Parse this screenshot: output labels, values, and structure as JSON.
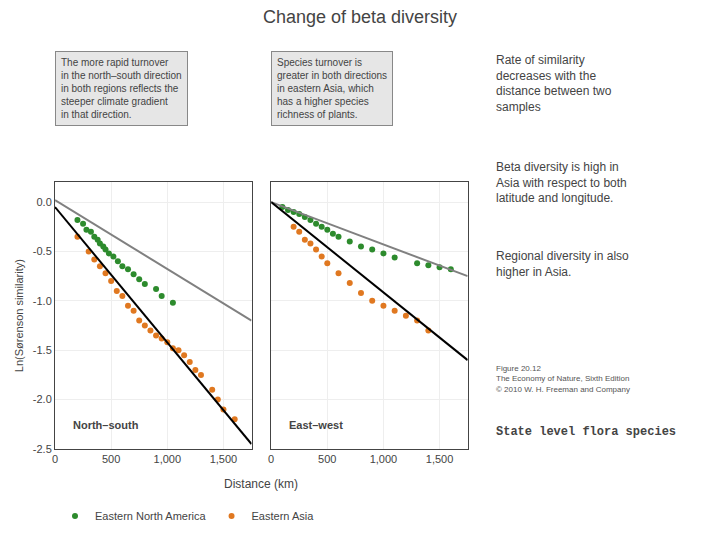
{
  "chart_data": [
    {
      "type": "scatter",
      "title": "Change of beta diversity",
      "subtitle": "North–south",
      "xlabel": "Distance (km)",
      "ylabel": "Ln(Sørenson similarity)",
      "xlim": [
        0,
        1750
      ],
      "ylim": [
        -2.5,
        0.2
      ],
      "xticks": [
        0,
        500,
        {
          "value": 1000,
          "label": "1,000"
        },
        {
          "value": 1500,
          "label": "1,500"
        }
      ],
      "yticks": [
        {
          "value": 0.0,
          "label": "0.0"
        },
        -0.5,
        {
          "value": -1.0,
          "label": "-1.0"
        },
        -1.5,
        {
          "value": -2.0,
          "label": "-2.0"
        },
        -2.5
      ],
      "grid": true,
      "legend": "bottom",
      "series": [
        {
          "name": "Eastern North America",
          "color": "#2d8b2d",
          "x": [
            200,
            250,
            280,
            320,
            350,
            380,
            400,
            430,
            450,
            480,
            520,
            560,
            600,
            650,
            700,
            750,
            800,
            900,
            950,
            1050
          ],
          "values": [
            -0.18,
            -0.22,
            -0.28,
            -0.3,
            -0.35,
            -0.38,
            -0.42,
            -0.45,
            -0.48,
            -0.52,
            -0.55,
            -0.6,
            -0.65,
            -0.68,
            -0.73,
            -0.78,
            -0.83,
            -0.88,
            -0.95,
            -1.02
          ]
        },
        {
          "name": "Eastern Asia",
          "color": "#e07820",
          "x": [
            200,
            300,
            350,
            400,
            450,
            500,
            550,
            600,
            650,
            700,
            750,
            800,
            850,
            900,
            950,
            1000,
            1050,
            1100,
            1150,
            1200,
            1250,
            1300,
            1400,
            1450,
            1500,
            1600
          ],
          "values": [
            -0.35,
            -0.5,
            -0.58,
            -0.65,
            -0.72,
            -0.8,
            -0.9,
            -0.95,
            -1.05,
            -1.1,
            -1.2,
            -1.25,
            -1.3,
            -1.35,
            -1.38,
            -1.42,
            -1.48,
            -1.5,
            -1.55,
            -1.62,
            -1.7,
            -1.75,
            -1.9,
            -2.0,
            -2.1,
            -2.2
          ]
        },
        {
          "type": "line",
          "color": "gray",
          "x": [
            0,
            1750
          ],
          "values": [
            0.02,
            -1.2
          ]
        },
        {
          "type": "line",
          "color": "black",
          "x": [
            0,
            1750
          ],
          "values": [
            -0.05,
            -2.45
          ]
        }
      ],
      "annotations": [
        "The more rapid turnover\nin the north–south direction\nin both regions reflects the\nsteeper climate gradient\nin that direction.",
        "Species turnover is\ngreater in both directions\nin eastern Asia, which\nhas a higher species\nrichness of plants.",
        "Rate of similarity\ndecreases with the\ndistance between two\nsamples",
        "Beta diversity is high in\nAsia with respect to both\nlatitude and longitude.",
        "Regional diversity in also\nhigher in Asia.",
        "Figure 20.12\nThe Economy of Nature, Sixth Edition\n© 2010 W. H. Freeman and Company",
        "State level flora species"
      ]
    },
    {
      "type": "scatter",
      "subtitle": "East–west",
      "xlim": [
        0,
        1750
      ],
      "ylim": [
        -2.5,
        0.2
      ],
      "xticks": [
        0,
        500,
        {
          "value": 1000,
          "label": "1,000"
        },
        {
          "value": 1500,
          "label": "1,500"
        }
      ],
      "yticks": [
        {
          "value": 0.0,
          "label": "0.0"
        },
        -0.5,
        {
          "value": -1.0,
          "label": "-1.0"
        },
        -1.5,
        {
          "value": -2.0,
          "label": "-2.0"
        },
        -2.5
      ],
      "tick_labels": "x",
      "grid": true,
      "series": [
        {
          "name": "Eastern North America",
          "color": "#2d8b2d",
          "x": [
            100,
            150,
            200,
            250,
            300,
            350,
            400,
            450,
            500,
            550,
            600,
            700,
            800,
            900,
            1000,
            1100,
            1300,
            1400,
            1500,
            1600
          ],
          "values": [
            -0.05,
            -0.08,
            -0.1,
            -0.12,
            -0.15,
            -0.18,
            -0.22,
            -0.25,
            -0.28,
            -0.32,
            -0.35,
            -0.4,
            -0.45,
            -0.48,
            -0.52,
            -0.56,
            -0.62,
            -0.64,
            -0.66,
            -0.68
          ]
        },
        {
          "name": "Eastern Asia",
          "color": "#e07820",
          "x": [
            200,
            250,
            300,
            350,
            400,
            450,
            500,
            600,
            700,
            800,
            900,
            1000,
            1100,
            1200,
            1300,
            1400
          ],
          "values": [
            -0.25,
            -0.3,
            -0.38,
            -0.42,
            -0.48,
            -0.55,
            -0.62,
            -0.72,
            -0.82,
            -0.92,
            -1.0,
            -1.05,
            -1.1,
            -1.15,
            -1.2,
            -1.3
          ]
        },
        {
          "type": "line",
          "color": "gray",
          "x": [
            0,
            1750
          ],
          "values": [
            0.0,
            -0.75
          ]
        },
        {
          "type": "line",
          "color": "black",
          "x": [
            0,
            1750
          ],
          "values": [
            0.0,
            -1.6
          ]
        }
      ]
    }
  ]
}
